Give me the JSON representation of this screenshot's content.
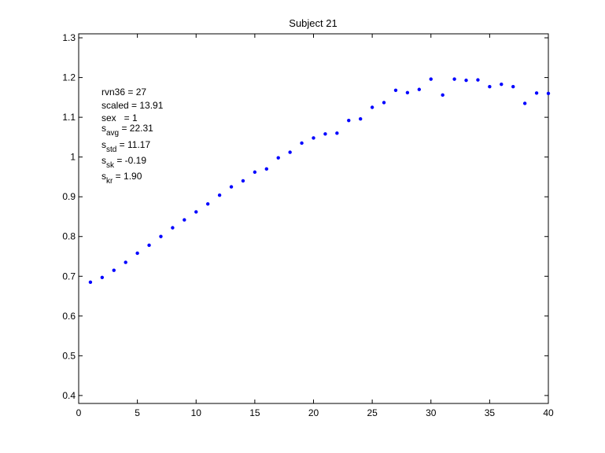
{
  "chart_data": {
    "type": "scatter",
    "title": "Subject 21",
    "xlabel": "",
    "ylabel": "",
    "xlim": [
      0,
      40
    ],
    "ylim": [
      0.38,
      1.31
    ],
    "xticks": [
      "0",
      "5",
      "10",
      "15",
      "20",
      "25",
      "30",
      "35",
      "40"
    ],
    "yticks": [
      "0.4",
      "0.5",
      "0.6",
      "0.7",
      "0.8",
      "0.9",
      "1",
      "1.1",
      "1.2",
      "1.3"
    ],
    "grid": false,
    "marker_color": "#0000ff",
    "series": [
      {
        "x": [
          1,
          2,
          3,
          4,
          5,
          6,
          7,
          8,
          9,
          10,
          11,
          12,
          13,
          14,
          15,
          16,
          17,
          18,
          19,
          20,
          21,
          22,
          23,
          24,
          25,
          26,
          27,
          28,
          29,
          30,
          31,
          32,
          33,
          34,
          35,
          36,
          37,
          38,
          39,
          40
        ],
        "y": [
          0.685,
          0.697,
          0.715,
          0.735,
          0.758,
          0.778,
          0.8,
          0.822,
          0.842,
          0.862,
          0.882,
          0.904,
          0.925,
          0.94,
          0.962,
          0.97,
          0.998,
          1.012,
          1.035,
          1.048,
          1.058,
          1.06,
          1.092,
          1.096,
          1.125,
          1.137,
          1.168,
          1.162,
          1.17,
          1.196,
          1.156,
          1.196,
          1.193,
          1.194,
          1.177,
          1.183,
          1.177,
          1.135,
          1.161,
          1.16
        ]
      }
    ],
    "annotation": {
      "rvn36_label": "rvn36 = 27",
      "scaled_label": "scaled = 13.91",
      "sex_label": "sex   = 1",
      "s_avg": {
        "base": "s",
        "sub": "avg",
        "rest": " = 22.31"
      },
      "s_std": {
        "base": "s",
        "sub": "std",
        "rest": " = 11.17"
      },
      "s_sk": {
        "base": "s",
        "sub": "sk",
        "rest": " = -0.19"
      },
      "s_kr": {
        "base": "s",
        "sub": "kr",
        "rest": " = 1.90"
      }
    }
  }
}
